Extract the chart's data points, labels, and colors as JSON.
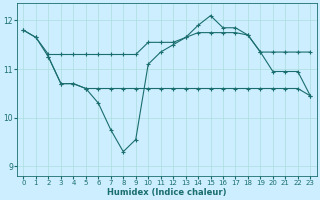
{
  "xlabel": "Humidex (Indice chaleur)",
  "background_color": "#cceeff",
  "line_color": "#1a6e6e",
  "grid_color": "#aadddd",
  "xlim": [
    -0.5,
    23.5
  ],
  "ylim": [
    8.8,
    12.35
  ],
  "xticks": [
    0,
    1,
    2,
    3,
    4,
    5,
    6,
    7,
    8,
    9,
    10,
    11,
    12,
    13,
    14,
    15,
    16,
    17,
    18,
    19,
    20,
    21,
    22,
    23
  ],
  "yticks": [
    9,
    10,
    11,
    12
  ],
  "curve1_x": [
    0,
    1,
    2,
    3,
    4,
    5,
    6,
    7,
    8,
    9,
    10,
    11,
    12,
    13,
    14,
    15,
    16,
    17,
    18,
    19,
    20,
    21,
    22,
    23
  ],
  "curve1_y": [
    11.8,
    11.65,
    11.3,
    11.3,
    11.3,
    11.3,
    11.3,
    11.3,
    11.3,
    11.3,
    11.55,
    11.55,
    11.55,
    11.65,
    11.75,
    11.75,
    11.75,
    11.75,
    11.7,
    11.35,
    11.35,
    11.35,
    11.35,
    11.35
  ],
  "curve2_x": [
    0,
    1,
    2,
    3,
    4,
    5,
    6,
    7,
    8,
    9,
    10,
    11,
    12,
    13,
    14,
    15,
    16,
    17,
    18,
    19,
    20,
    21,
    22,
    23
  ],
  "curve2_y": [
    11.8,
    11.65,
    11.25,
    10.7,
    10.7,
    10.6,
    10.3,
    9.75,
    9.3,
    9.55,
    11.1,
    11.35,
    11.5,
    11.65,
    11.9,
    12.1,
    11.85,
    11.85,
    11.7,
    11.35,
    10.95,
    10.95,
    10.95,
    10.45
  ],
  "curve3_x": [
    2,
    3,
    4,
    5,
    6,
    7,
    8,
    9,
    10,
    11,
    12,
    13,
    14,
    15,
    16,
    17,
    18,
    19,
    20,
    21,
    22,
    23
  ],
  "curve3_y": [
    11.25,
    10.7,
    10.7,
    10.6,
    10.6,
    10.6,
    10.6,
    10.6,
    10.6,
    10.6,
    10.6,
    10.6,
    10.6,
    10.6,
    10.6,
    10.6,
    10.6,
    10.6,
    10.6,
    10.6,
    10.6,
    10.45
  ]
}
